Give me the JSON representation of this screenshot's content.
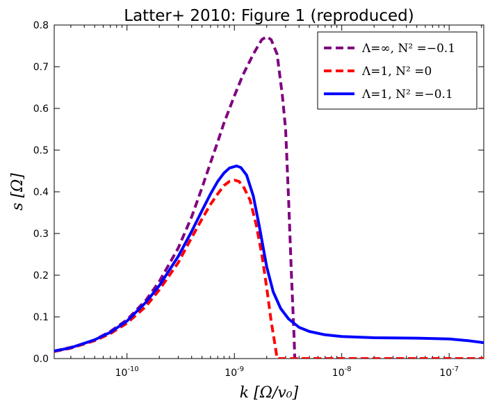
{
  "chart_data": {
    "type": "line",
    "title": "Latter+ 2010: Figure 1 (reproduced)",
    "xlabel": "k [Ω/v₀]",
    "ylabel": "s [Ω]",
    "xscale": "log",
    "xlim": [
      2.1e-11,
      2.1e-07
    ],
    "ylim": [
      0,
      0.8
    ],
    "x_ticks": [
      {
        "value": 1e-10,
        "base": "10",
        "exp": "-10"
      },
      {
        "value": 1e-09,
        "base": "10",
        "exp": "-9"
      },
      {
        "value": 1e-08,
        "base": "10",
        "exp": "-8"
      },
      {
        "value": 1e-07,
        "base": "10",
        "exp": "-7"
      }
    ],
    "y_ticks": [
      "0.0",
      "0.1",
      "0.2",
      "0.3",
      "0.4",
      "0.5",
      "0.6",
      "0.7",
      "0.8"
    ],
    "grid": false,
    "legend_position": "top-right",
    "series": [
      {
        "name": "Λ=∞, N² =−0.1",
        "color": "#800080",
        "dash": "dashed",
        "points": [
          [
            2.1e-11,
            0.018
          ],
          [
            3e-11,
            0.027
          ],
          [
            4e-11,
            0.036
          ],
          [
            5e-11,
            0.045
          ],
          [
            7e-11,
            0.065
          ],
          [
            1e-10,
            0.093
          ],
          [
            1.5e-10,
            0.14
          ],
          [
            2e-10,
            0.185
          ],
          [
            3e-10,
            0.265
          ],
          [
            4e-10,
            0.34
          ],
          [
            5e-10,
            0.41
          ],
          [
            6e-10,
            0.47
          ],
          [
            7e-10,
            0.52
          ],
          [
            8e-10,
            0.565
          ],
          [
            1e-09,
            0.63
          ],
          [
            1.2e-09,
            0.68
          ],
          [
            1.5e-09,
            0.73
          ],
          [
            1.8e-09,
            0.765
          ],
          [
            2e-09,
            0.772
          ],
          [
            2.2e-09,
            0.765
          ],
          [
            2.5e-09,
            0.73
          ],
          [
            2.8e-09,
            0.63
          ],
          [
            3e-09,
            0.55
          ],
          [
            3.2e-09,
            0.38
          ],
          [
            3.4e-09,
            0.2
          ],
          [
            3.6e-09,
            0.05
          ],
          [
            3.65e-09,
            0.0
          ],
          [
            1e-08,
            0.0
          ],
          [
            1e-07,
            0.0
          ],
          [
            2.1e-07,
            0.0
          ]
        ]
      },
      {
        "name": "Λ=1, N² =0",
        "color": "#ff0000",
        "dash": "dashed",
        "points": [
          [
            2.1e-11,
            0.017
          ],
          [
            3e-11,
            0.025
          ],
          [
            5e-11,
            0.043
          ],
          [
            7e-11,
            0.06
          ],
          [
            1e-10,
            0.085
          ],
          [
            1.5e-10,
            0.125
          ],
          [
            2e-10,
            0.165
          ],
          [
            3e-10,
            0.23
          ],
          [
            4e-10,
            0.29
          ],
          [
            5e-10,
            0.335
          ],
          [
            6e-10,
            0.37
          ],
          [
            7e-10,
            0.395
          ],
          [
            8e-10,
            0.415
          ],
          [
            9e-10,
            0.425
          ],
          [
            1e-09,
            0.428
          ],
          [
            1.1e-09,
            0.425
          ],
          [
            1.2e-09,
            0.415
          ],
          [
            1.4e-09,
            0.38
          ],
          [
            1.6e-09,
            0.32
          ],
          [
            1.8e-09,
            0.25
          ],
          [
            2e-09,
            0.17
          ],
          [
            2.2e-09,
            0.09
          ],
          [
            2.4e-09,
            0.03
          ],
          [
            2.5e-09,
            0.0
          ],
          [
            1e-08,
            0.0
          ],
          [
            1e-07,
            0.0
          ],
          [
            2.1e-07,
            0.0
          ]
        ]
      },
      {
        "name": "Λ=1, N² =−0.1",
        "color": "#0000ff",
        "dash": "solid",
        "points": [
          [
            2.1e-11,
            0.018
          ],
          [
            3e-11,
            0.026
          ],
          [
            5e-11,
            0.045
          ],
          [
            7e-11,
            0.063
          ],
          [
            1e-10,
            0.09
          ],
          [
            1.5e-10,
            0.135
          ],
          [
            2e-10,
            0.175
          ],
          [
            3e-10,
            0.245
          ],
          [
            4e-10,
            0.305
          ],
          [
            5e-10,
            0.355
          ],
          [
            6e-10,
            0.395
          ],
          [
            7e-10,
            0.425
          ],
          [
            8e-10,
            0.445
          ],
          [
            9e-10,
            0.457
          ],
          [
            1.05e-09,
            0.462
          ],
          [
            1.15e-09,
            0.458
          ],
          [
            1.3e-09,
            0.44
          ],
          [
            1.5e-09,
            0.39
          ],
          [
            1.7e-09,
            0.32
          ],
          [
            2e-09,
            0.22
          ],
          [
            2.3e-09,
            0.16
          ],
          [
            2.7e-09,
            0.12
          ],
          [
            3.2e-09,
            0.095
          ],
          [
            4e-09,
            0.075
          ],
          [
            5e-09,
            0.065
          ],
          [
            7e-09,
            0.057
          ],
          [
            1e-08,
            0.053
          ],
          [
            2e-08,
            0.05
          ],
          [
            5e-08,
            0.049
          ],
          [
            1e-07,
            0.047
          ],
          [
            1.5e-07,
            0.043
          ],
          [
            2.1e-07,
            0.038
          ]
        ]
      }
    ]
  }
}
